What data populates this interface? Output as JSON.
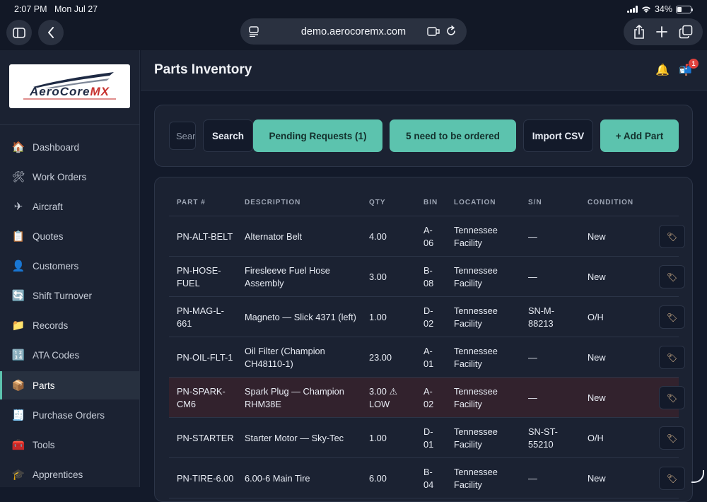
{
  "status_bar": {
    "time": "2:07 PM",
    "date": "Mon Jul 27",
    "battery": "34%",
    "battery_level": 0.34
  },
  "browser": {
    "url": "demo.aerocoremx.com"
  },
  "sidebar": {
    "logo": {
      "text_main": "AeroCore",
      "text_accent": "MX"
    },
    "items": [
      {
        "label": "Dashboard",
        "icon": "🏠"
      },
      {
        "label": "Work Orders",
        "icon": "🛠"
      },
      {
        "label": "Aircraft",
        "icon": "✈"
      },
      {
        "label": "Quotes",
        "icon": "📋"
      },
      {
        "label": "Customers",
        "icon": "👤"
      },
      {
        "label": "Shift Turnover",
        "icon": "🔄"
      },
      {
        "label": "Records",
        "icon": "📁"
      },
      {
        "label": "ATA Codes",
        "icon": "🔢"
      },
      {
        "label": "Parts",
        "icon": "📦",
        "active": true
      },
      {
        "label": "Purchase Orders",
        "icon": "🧾"
      },
      {
        "label": "Tools",
        "icon": "🧰"
      },
      {
        "label": "Apprentices",
        "icon": "🎓"
      }
    ]
  },
  "header": {
    "title": "Parts Inventory",
    "notification_count": "1"
  },
  "toolbar": {
    "search_placeholder": "Search",
    "search_label": "Search",
    "pending_label": "Pending Requests (1)",
    "order_label": "5 need to be ordered",
    "import_label": "Import CSV",
    "add_label": "+ Add Part"
  },
  "table": {
    "columns": [
      "PART #",
      "DESCRIPTION",
      "QTY",
      "BIN",
      "LOCATION",
      "S/N",
      "CONDITION"
    ],
    "rows": [
      {
        "part": "PN-ALT-BELT",
        "description": "Alternator Belt",
        "qty": "4.00",
        "bin": "A-06",
        "location": "Tennessee Facility",
        "sn": "—",
        "condition": "New",
        "low": false
      },
      {
        "part": "PN-HOSE-FUEL",
        "description": "Firesleeve Fuel Hose Assembly",
        "qty": "3.00",
        "bin": "B-08",
        "location": "Tennessee Facility",
        "sn": "—",
        "condition": "New",
        "low": false
      },
      {
        "part": "PN-MAG-L-661",
        "description": "Magneto — Slick 4371 (left)",
        "qty": "1.00",
        "bin": "D-02",
        "location": "Tennessee Facility",
        "sn": "SN-M-88213",
        "condition": "O/H",
        "low": false
      },
      {
        "part": "PN-OIL-FLT-1",
        "description": "Oil Filter (Champion CH48110-1)",
        "qty": "23.00",
        "bin": "A-01",
        "location": "Tennessee Facility",
        "sn": "—",
        "condition": "New",
        "low": false
      },
      {
        "part": "PN-SPARK-CM6",
        "description": "Spark Plug — Champion RHM38E",
        "qty": "3.00 ⚠ LOW",
        "bin": "A-02",
        "location": "Tennessee Facility",
        "sn": "—",
        "condition": "New",
        "low": true
      },
      {
        "part": "PN-STARTER",
        "description": "Starter Motor — Sky-Tec",
        "qty": "1.00",
        "bin": "D-01",
        "location": "Tennessee Facility",
        "sn": "SN-ST-55210",
        "condition": "O/H",
        "low": false
      },
      {
        "part": "PN-TIRE-6.00",
        "description": "6.00-6 Main Tire",
        "qty": "6.00",
        "bin": "B-04",
        "location": "Tennessee Facility",
        "sn": "—",
        "condition": "New",
        "low": false
      }
    ]
  },
  "colors": {
    "accent": "#5cc3ae",
    "background": "#131a2a",
    "panel": "#1b2232",
    "low_row": "#32222d",
    "badge": "#e0413d"
  }
}
